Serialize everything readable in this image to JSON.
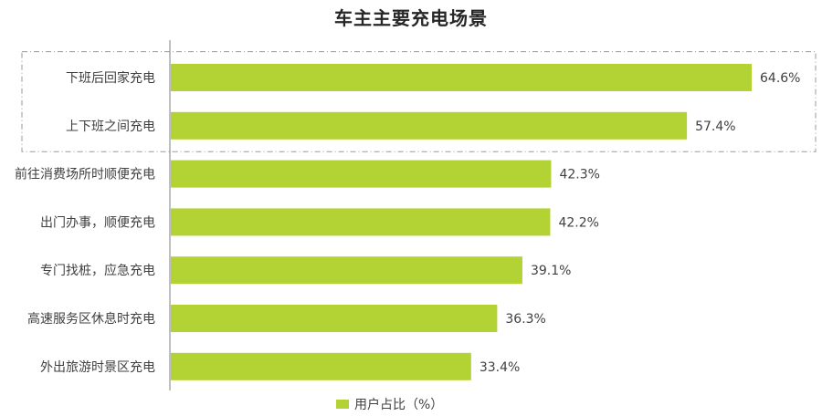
{
  "colors": {
    "bar": "#b3d233",
    "axis": "#7f7f7f",
    "highlight_border": "#9a9a9a"
  },
  "chart_data": {
    "type": "bar",
    "orientation": "horizontal",
    "title": "车主主要充电场景",
    "categories": [
      "下班后回家充电",
      "上下班之间充电",
      "前往消费场所时顺便充电",
      "出门办事，顺便充电",
      "专门找桩，应急充电",
      "高速服务区休息时充电",
      "外出旅游时景区充电"
    ],
    "values": [
      64.6,
      57.4,
      42.3,
      42.2,
      39.1,
      36.3,
      33.4
    ],
    "value_labels": [
      "64.6%",
      "57.4%",
      "42.3%",
      "42.2%",
      "39.1%",
      "36.3%",
      "33.4%"
    ],
    "series": [
      {
        "name": "用户占比（%）",
        "values": [
          64.6,
          57.4,
          42.3,
          42.2,
          39.1,
          36.3,
          33.4
        ]
      }
    ],
    "xlim": [
      0,
      70
    ],
    "grid": false,
    "legend_position": "bottom",
    "highlighted_categories": [
      "下班后回家充电",
      "上下班之间充电"
    ]
  }
}
